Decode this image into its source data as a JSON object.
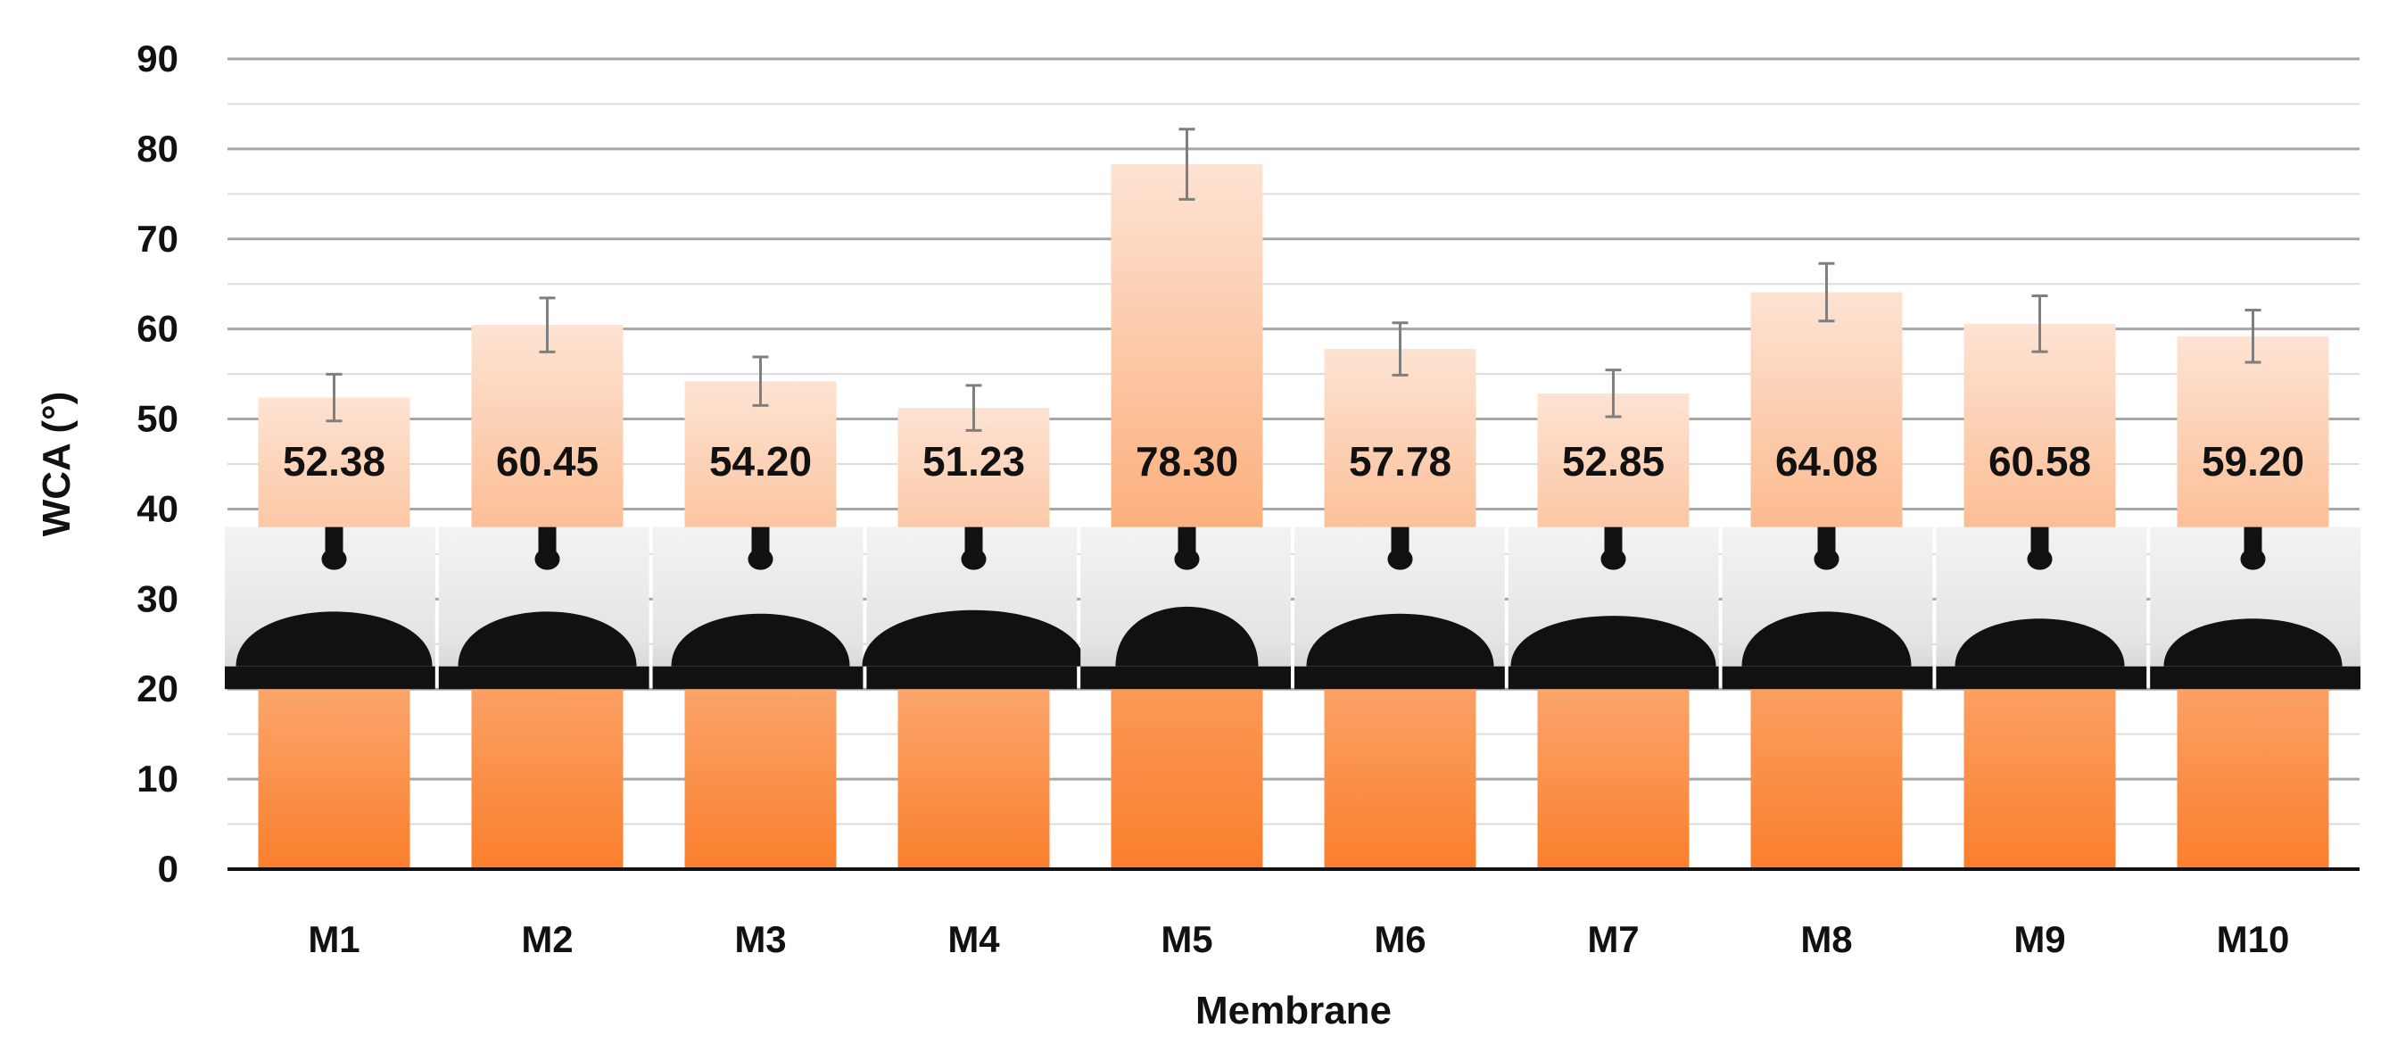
{
  "chart_data": {
    "type": "bar",
    "categories": [
      "M1",
      "M2",
      "M3",
      "M4",
      "M5",
      "M6",
      "M7",
      "M8",
      "M9",
      "M10"
    ],
    "values": [
      52.38,
      60.45,
      54.2,
      51.23,
      78.3,
      57.78,
      52.85,
      64.08,
      60.58,
      59.2
    ],
    "value_labels": [
      "52.38",
      "60.45",
      "54.20",
      "51.23",
      "78.30",
      "57.78",
      "52.85",
      "64.08",
      "60.58",
      "59.20"
    ],
    "error": [
      2.6,
      3.0,
      2.7,
      2.5,
      3.9,
      2.9,
      2.6,
      3.2,
      3.1,
      2.9
    ],
    "title": "",
    "xlabel": "Membrane",
    "ylabel": "WCA (°)",
    "ylim": [
      0,
      90
    ],
    "yticks": [
      0,
      10,
      20,
      30,
      40,
      50,
      60,
      70,
      80,
      90
    ],
    "grid": true,
    "legend": "none",
    "colors": {
      "bar_top": "#fde3d3",
      "bar_bottom": "#fa7f2c",
      "grid_major": "#a6a6a6",
      "grid_minor": "#dcdcdc",
      "error_bar": "#7f7f7f",
      "droplet_photo_bg": "#eaeaea",
      "droplet": "#111111"
    },
    "annotations": "droplet contact-angle photographs inset across each bar between 20 and 38"
  }
}
